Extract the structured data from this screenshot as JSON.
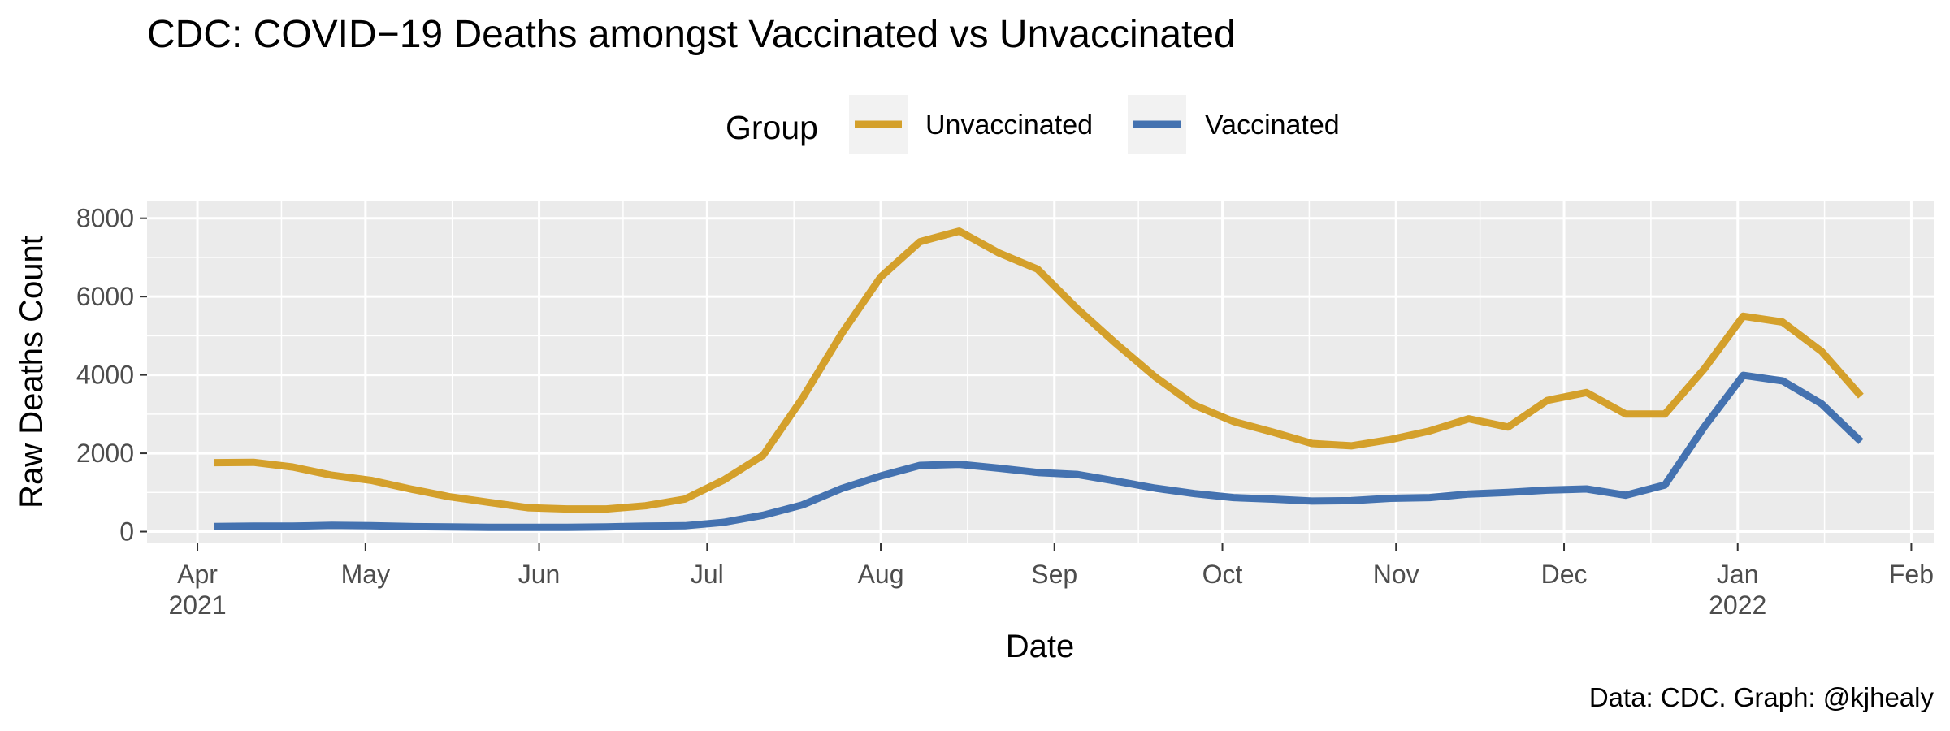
{
  "chart_data": {
    "type": "line",
    "title": "CDC: COVID−19 Deaths amongst Vaccinated vs Unvaccinated",
    "xlabel": "Date",
    "ylabel": "Raw Deaths Count",
    "caption": "Data: CDC. Graph: @kjhealy",
    "legend": {
      "title": "Group",
      "placement": "top"
    },
    "grid": true,
    "xlim": [
      "2021-03-23",
      "2022-02-05"
    ],
    "ylim": [
      -300,
      8450
    ],
    "y_ticks": [
      {
        "value": 0,
        "label": "0"
      },
      {
        "value": 2000,
        "label": "2000"
      },
      {
        "value": 4000,
        "label": "4000"
      },
      {
        "value": 6000,
        "label": "6000"
      },
      {
        "value": 8000,
        "label": "8000"
      }
    ],
    "x_ticks": [
      {
        "date": "2021-04-01",
        "label": "Apr",
        "sublabel": "2021"
      },
      {
        "date": "2021-05-01",
        "label": "May",
        "sublabel": ""
      },
      {
        "date": "2021-06-01",
        "label": "Jun",
        "sublabel": ""
      },
      {
        "date": "2021-07-01",
        "label": "Jul",
        "sublabel": ""
      },
      {
        "date": "2021-08-01",
        "label": "Aug",
        "sublabel": ""
      },
      {
        "date": "2021-09-01",
        "label": "Sep",
        "sublabel": ""
      },
      {
        "date": "2021-10-01",
        "label": "Oct",
        "sublabel": ""
      },
      {
        "date": "2021-11-01",
        "label": "Nov",
        "sublabel": ""
      },
      {
        "date": "2021-12-01",
        "label": "Dec",
        "sublabel": ""
      },
      {
        "date": "2022-01-01",
        "label": "Jan",
        "sublabel": "2022"
      },
      {
        "date": "2022-02-01",
        "label": "Feb",
        "sublabel": ""
      }
    ],
    "x": [
      "2021-04-04",
      "2021-04-11",
      "2021-04-18",
      "2021-04-25",
      "2021-05-02",
      "2021-05-09",
      "2021-05-16",
      "2021-05-23",
      "2021-05-30",
      "2021-06-06",
      "2021-06-13",
      "2021-06-20",
      "2021-06-27",
      "2021-07-04",
      "2021-07-11",
      "2021-07-18",
      "2021-07-25",
      "2021-08-01",
      "2021-08-08",
      "2021-08-15",
      "2021-08-22",
      "2021-08-29",
      "2021-09-05",
      "2021-09-12",
      "2021-09-19",
      "2021-09-26",
      "2021-10-03",
      "2021-10-10",
      "2021-10-17",
      "2021-10-24",
      "2021-10-31",
      "2021-11-07",
      "2021-11-14",
      "2021-11-21",
      "2021-11-28",
      "2021-12-05",
      "2021-12-12",
      "2021-12-19",
      "2021-12-26",
      "2022-01-02",
      "2022-01-09",
      "2022-01-16",
      "2022-01-23"
    ],
    "series": [
      {
        "name": "Unvaccinated",
        "color": "#D4A02B",
        "values": [
          1760,
          1770,
          1650,
          1440,
          1310,
          1090,
          890,
          750,
          610,
          580,
          580,
          660,
          830,
          1320,
          1950,
          3400,
          5050,
          6500,
          7400,
          7670,
          7120,
          6700,
          5700,
          4800,
          3950,
          3230,
          2810,
          2540,
          2250,
          2190,
          2350,
          2570,
          2880,
          2670,
          3350,
          3550,
          3000,
          3000,
          4150,
          5500,
          5350,
          4600,
          3460
        ]
      },
      {
        "name": "Vaccinated",
        "color": "#4472B0",
        "values": [
          130,
          140,
          140,
          160,
          150,
          130,
          120,
          110,
          110,
          110,
          120,
          140,
          150,
          240,
          420,
          680,
          1100,
          1420,
          1690,
          1720,
          1620,
          1510,
          1460,
          1290,
          1110,
          970,
          870,
          830,
          780,
          790,
          850,
          870,
          960,
          1000,
          1060,
          1090,
          930,
          1190,
          2670,
          3990,
          3850,
          3260,
          2300
        ]
      }
    ]
  }
}
